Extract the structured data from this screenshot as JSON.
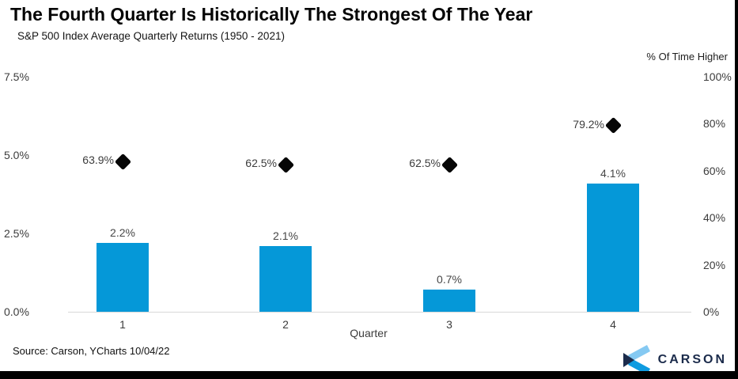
{
  "title": "The Fourth Quarter Is Historically The Strongest Of The Year",
  "subtitle": "S&P 500 Index Average Quarterly Returns (1950 - 2021)",
  "right_axis_title": "% Of Time Higher",
  "source": "Source: Carson, YCharts 10/04/22",
  "logo": {
    "text": "CARSON"
  },
  "colors": {
    "bar": "#0598d8",
    "marker": "#060606",
    "axis_line": "#d8d8d8",
    "logo_navy": "#1b2b4b",
    "logo_light_blue": "#85c9f2",
    "logo_mid_blue": "#0f9be0"
  },
  "chart_data": {
    "type": "bar",
    "categories": [
      "1",
      "2",
      "3",
      "4"
    ],
    "xlabel": "Quarter",
    "title": "The Fourth Quarter Is Historically The Strongest Of The Year",
    "subtitle": "S&P 500 Index Average Quarterly Returns (1950 - 2021)",
    "series": [
      {
        "name": "Average Quarterly Return",
        "type": "bar",
        "axis": "left",
        "values": [
          2.2,
          2.1,
          0.7,
          4.1
        ],
        "labels": [
          "2.2%",
          "2.1%",
          "0.7%",
          "4.1%"
        ]
      },
      {
        "name": "% Of Time Higher",
        "type": "scatter",
        "marker": "diamond",
        "axis": "right",
        "values": [
          63.9,
          62.5,
          62.5,
          79.2
        ],
        "labels": [
          "63.9%",
          "62.5%",
          "62.5%",
          "79.2%"
        ]
      }
    ],
    "left_axis": {
      "min": 0,
      "max": 7.5,
      "ticks": [
        "7.5%",
        "5.0%",
        "2.5%",
        "0.0%"
      ]
    },
    "right_axis": {
      "min": 0,
      "max": 100,
      "ticks": [
        "100%",
        "80%",
        "60%",
        "40%",
        "20%",
        "0%"
      ]
    },
    "grid": false,
    "legend": false
  }
}
